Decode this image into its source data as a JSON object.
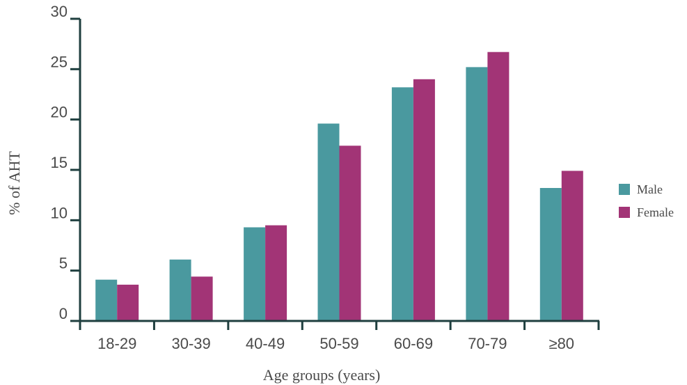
{
  "chart_data": {
    "type": "bar",
    "categories": [
      "18-29",
      "30-39",
      "40-49",
      "50-59",
      "60-69",
      "70-79",
      "≥80"
    ],
    "series": [
      {
        "name": "Male",
        "values": [
          4.1,
          6.1,
          9.3,
          19.6,
          23.2,
          25.2,
          13.2
        ],
        "color": "#4a999f"
      },
      {
        "name": "Female",
        "values": [
          3.6,
          4.4,
          9.5,
          17.4,
          24.0,
          26.7,
          14.9
        ],
        "color": "#a23476"
      }
    ],
    "xlabel": "Age groups (years)",
    "ylabel": "% of AHT",
    "ylim": [
      0,
      30
    ],
    "yticks": [
      0,
      5,
      10,
      15,
      20,
      25,
      30
    ],
    "grid": false,
    "legend_position": "right",
    "axis_color": "#1f3f3f"
  }
}
